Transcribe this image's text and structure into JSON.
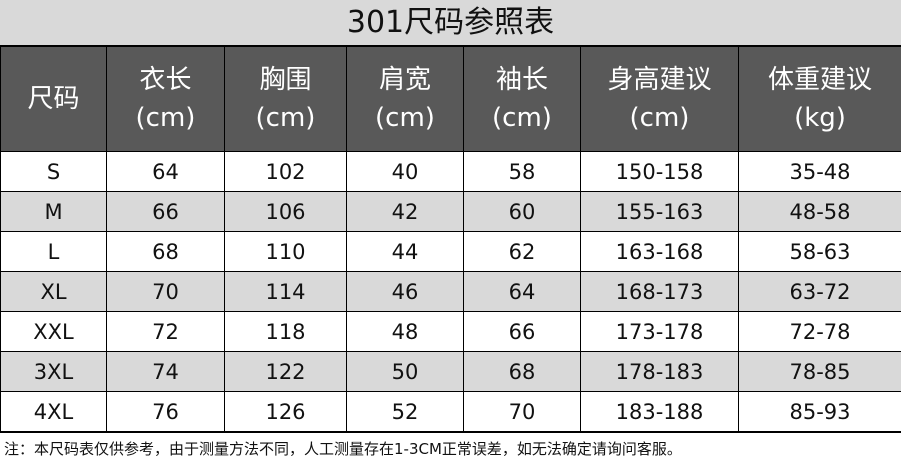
{
  "title": "301尺码参照表",
  "table": {
    "header": [
      {
        "name": "尺码"
      },
      {
        "name": "衣长",
        "unit": "(cm)"
      },
      {
        "name": "胸围",
        "unit": "(cm)"
      },
      {
        "name": "肩宽",
        "unit": "(cm)"
      },
      {
        "name": "袖长",
        "unit": "(cm)"
      },
      {
        "name": "身高建议",
        "unit": "(cm)"
      },
      {
        "name": "体重建议",
        "unit": "(kg)"
      }
    ],
    "rows": [
      [
        "S",
        64,
        102,
        40,
        58,
        "150-158",
        "35-48"
      ],
      [
        "M",
        66,
        106,
        42,
        60,
        "155-163",
        "48-58"
      ],
      [
        "L",
        68,
        110,
        44,
        62,
        "163-168",
        "58-63"
      ],
      [
        "XL",
        70,
        114,
        46,
        64,
        "168-173",
        "63-72"
      ],
      [
        "XXL",
        72,
        118,
        48,
        66,
        "173-178",
        "72-78"
      ],
      [
        "3XL",
        74,
        122,
        50,
        68,
        "178-183",
        "78-85"
      ],
      [
        "4XL",
        76,
        126,
        52,
        70,
        "183-188",
        "85-93"
      ]
    ]
  },
  "note": "注：本尺码表仅供参考，由于测量方法不同，人工测量存在1-3CM正常误差，如无法确定请询问客服。"
}
